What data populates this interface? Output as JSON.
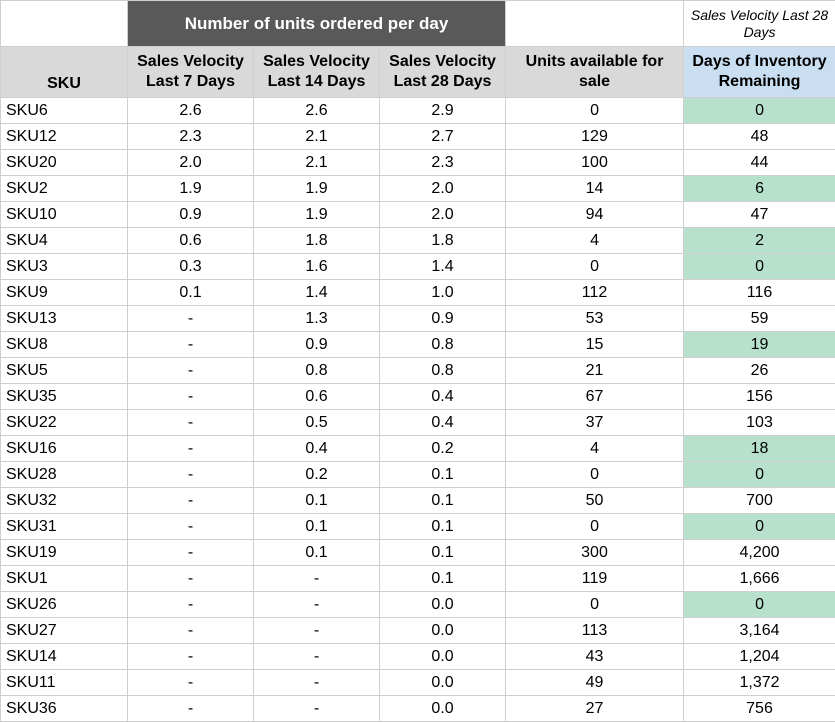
{
  "group_header": "Number of units ordered per day",
  "note": "Sales Velocity Last 28 Days",
  "columns": [
    "SKU",
    "Sales Velocity Last 7 Days",
    "Sales Velocity Last 14 Days",
    "Sales Velocity Last 28 Days",
    "Units available for sale",
    "Days of Inventory Remaining"
  ],
  "highlight_color": "#b7e1cd",
  "rows": [
    {
      "sku": "SKU6",
      "v7": "2.6",
      "v14": "2.6",
      "v28": "2.9",
      "units": "0",
      "days": "0",
      "highlight": true
    },
    {
      "sku": "SKU12",
      "v7": "2.3",
      "v14": "2.1",
      "v28": "2.7",
      "units": "129",
      "days": "48",
      "highlight": false
    },
    {
      "sku": "SKU20",
      "v7": "2.0",
      "v14": "2.1",
      "v28": "2.3",
      "units": "100",
      "days": "44",
      "highlight": false
    },
    {
      "sku": "SKU2",
      "v7": "1.9",
      "v14": "1.9",
      "v28": "2.0",
      "units": "14",
      "days": "6",
      "highlight": true
    },
    {
      "sku": "SKU10",
      "v7": "0.9",
      "v14": "1.9",
      "v28": "2.0",
      "units": "94",
      "days": "47",
      "highlight": false
    },
    {
      "sku": "SKU4",
      "v7": "0.6",
      "v14": "1.8",
      "v28": "1.8",
      "units": "4",
      "days": "2",
      "highlight": true
    },
    {
      "sku": "SKU3",
      "v7": "0.3",
      "v14": "1.6",
      "v28": "1.4",
      "units": "0",
      "days": "0",
      "highlight": true
    },
    {
      "sku": "SKU9",
      "v7": "0.1",
      "v14": "1.4",
      "v28": "1.0",
      "units": "112",
      "days": "116",
      "highlight": false
    },
    {
      "sku": "SKU13",
      "v7": "-",
      "v14": "1.3",
      "v28": "0.9",
      "units": "53",
      "days": "59",
      "highlight": false
    },
    {
      "sku": "SKU8",
      "v7": "-",
      "v14": "0.9",
      "v28": "0.8",
      "units": "15",
      "days": "19",
      "highlight": true
    },
    {
      "sku": "SKU5",
      "v7": "-",
      "v14": "0.8",
      "v28": "0.8",
      "units": "21",
      "days": "26",
      "highlight": false
    },
    {
      "sku": "SKU35",
      "v7": "-",
      "v14": "0.6",
      "v28": "0.4",
      "units": "67",
      "days": "156",
      "highlight": false
    },
    {
      "sku": "SKU22",
      "v7": "-",
      "v14": "0.5",
      "v28": "0.4",
      "units": "37",
      "days": "103",
      "highlight": false
    },
    {
      "sku": "SKU16",
      "v7": "-",
      "v14": "0.4",
      "v28": "0.2",
      "units": "4",
      "days": "18",
      "highlight": true
    },
    {
      "sku": "SKU28",
      "v7": "-",
      "v14": "0.2",
      "v28": "0.1",
      "units": "0",
      "days": "0",
      "highlight": true
    },
    {
      "sku": "SKU32",
      "v7": "-",
      "v14": "0.1",
      "v28": "0.1",
      "units": "50",
      "days": "700",
      "highlight": false
    },
    {
      "sku": "SKU31",
      "v7": "-",
      "v14": "0.1",
      "v28": "0.1",
      "units": "0",
      "days": "0",
      "highlight": true
    },
    {
      "sku": "SKU19",
      "v7": "-",
      "v14": "0.1",
      "v28": "0.1",
      "units": "300",
      "days": "4,200",
      "highlight": false
    },
    {
      "sku": "SKU1",
      "v7": "-",
      "v14": "-",
      "v28": "0.1",
      "units": "119",
      "days": "1,666",
      "highlight": false
    },
    {
      "sku": "SKU26",
      "v7": "-",
      "v14": "-",
      "v28": "0.0",
      "units": "0",
      "days": "0",
      "highlight": true
    },
    {
      "sku": "SKU27",
      "v7": "-",
      "v14": "-",
      "v28": "0.0",
      "units": "113",
      "days": "3,164",
      "highlight": false
    },
    {
      "sku": "SKU14",
      "v7": "-",
      "v14": "-",
      "v28": "0.0",
      "units": "43",
      "days": "1,204",
      "highlight": false
    },
    {
      "sku": "SKU11",
      "v7": "-",
      "v14": "-",
      "v28": "0.0",
      "units": "49",
      "days": "1,372",
      "highlight": false
    },
    {
      "sku": "SKU36",
      "v7": "-",
      "v14": "-",
      "v28": "0.0",
      "units": "27",
      "days": "756",
      "highlight": false
    }
  ]
}
